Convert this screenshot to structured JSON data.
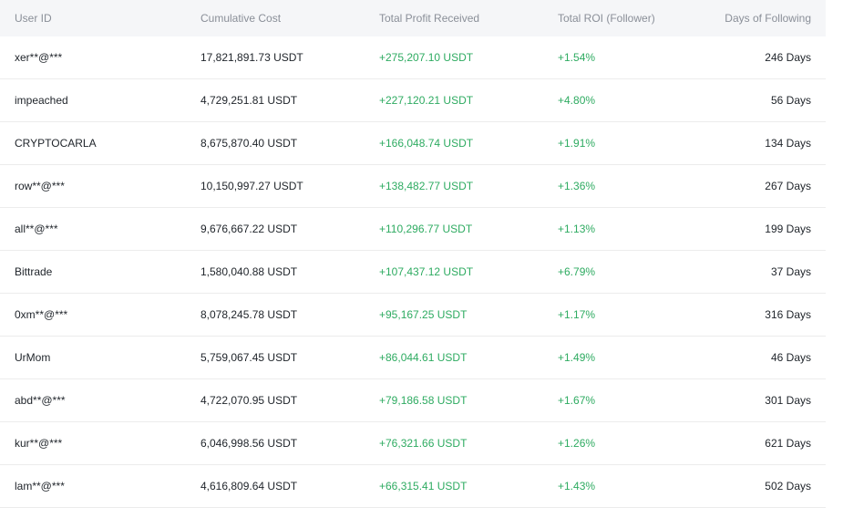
{
  "table": {
    "headers": {
      "user_id": "User ID",
      "cumulative_cost": "Cumulative Cost",
      "total_profit": "Total Profit Received",
      "total_roi": "Total ROI (Follower)",
      "days": "Days of Following"
    },
    "rows": [
      {
        "user": "xer**@***",
        "cost": "17,821,891.73 USDT",
        "profit": "+275,207.10 USDT",
        "roi": "+1.54%",
        "days": "246 Days"
      },
      {
        "user": "impeached",
        "cost": "4,729,251.81 USDT",
        "profit": "+227,120.21 USDT",
        "roi": "+4.80%",
        "days": "56 Days"
      },
      {
        "user": "CRYPTOCARLA",
        "cost": "8,675,870.40 USDT",
        "profit": "+166,048.74 USDT",
        "roi": "+1.91%",
        "days": "134 Days"
      },
      {
        "user": "row**@***",
        "cost": "10,150,997.27 USDT",
        "profit": "+138,482.77 USDT",
        "roi": "+1.36%",
        "days": "267 Days"
      },
      {
        "user": "all**@***",
        "cost": "9,676,667.22 USDT",
        "profit": "+110,296.77 USDT",
        "roi": "+1.13%",
        "days": "199 Days"
      },
      {
        "user": "Bittrade",
        "cost": "1,580,040.88 USDT",
        "profit": "+107,437.12 USDT",
        "roi": "+6.79%",
        "days": "37 Days"
      },
      {
        "user": "0xm**@***",
        "cost": "8,078,245.78 USDT",
        "profit": "+95,167.25 USDT",
        "roi": "+1.17%",
        "days": "316 Days"
      },
      {
        "user": "UrMom",
        "cost": "5,759,067.45 USDT",
        "profit": "+86,044.61 USDT",
        "roi": "+1.49%",
        "days": "46 Days"
      },
      {
        "user": "abd**@***",
        "cost": "4,722,070.95 USDT",
        "profit": "+79,186.58 USDT",
        "roi": "+1.67%",
        "days": "301 Days"
      },
      {
        "user": "kur**@***",
        "cost": "6,046,998.56 USDT",
        "profit": "+76,321.66 USDT",
        "roi": "+1.26%",
        "days": "621 Days"
      },
      {
        "user": "lam**@***",
        "cost": "4,616,809.64 USDT",
        "profit": "+66,315.41 USDT",
        "roi": "+1.43%",
        "days": "502 Days"
      }
    ]
  }
}
